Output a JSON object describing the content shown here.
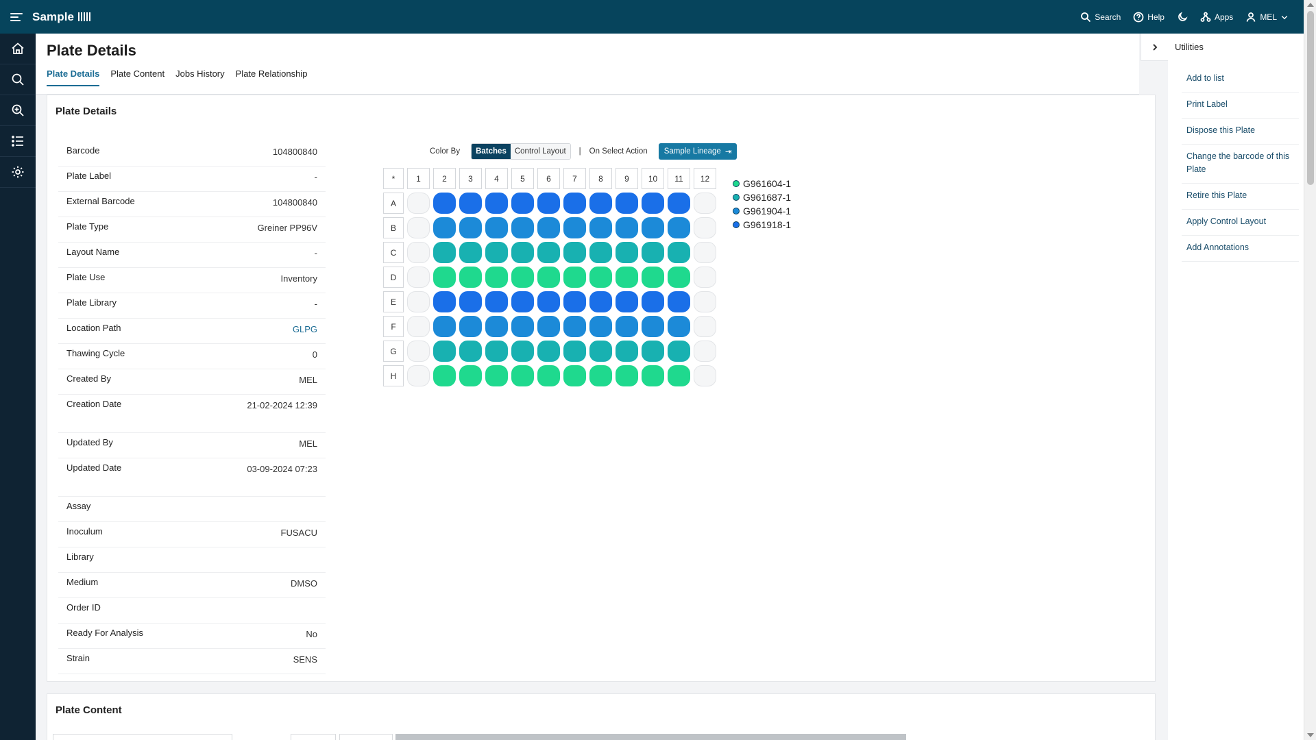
{
  "app": {
    "brand": "Sample"
  },
  "topnav": {
    "search": "Search",
    "help": "Help",
    "apps": "Apps",
    "user": "MEL"
  },
  "page": {
    "title": "Plate Details",
    "tabs": [
      "Plate Details",
      "Plate Content",
      "Jobs History",
      "Plate Relationship"
    ]
  },
  "details": {
    "title": "Plate Details",
    "fields": [
      {
        "label": "Barcode",
        "value": "104800840"
      },
      {
        "label": "Plate Label",
        "value": "-"
      },
      {
        "label": "External Barcode",
        "value": "104800840"
      },
      {
        "label": "Plate Type",
        "value": "Greiner PP96V"
      },
      {
        "label": "Layout Name",
        "value": "-"
      },
      {
        "label": "Plate Use",
        "value": "Inventory"
      },
      {
        "label": "Plate Library",
        "value": "-"
      },
      {
        "label": "Location Path",
        "value": "GLPG"
      },
      {
        "label": "Thawing Cycle",
        "value": "0"
      },
      {
        "label": "Created By",
        "value": "MEL"
      },
      {
        "label": "Creation Date",
        "value": "21-02-2024 12:39"
      },
      {
        "label": "Updated By",
        "value": "MEL"
      },
      {
        "label": "Updated Date",
        "value": "03-09-2024 07:23"
      },
      {
        "label": "Assay",
        "value": ""
      },
      {
        "label": "Inoculum",
        "value": "FUSACU"
      },
      {
        "label": "Library",
        "value": ""
      },
      {
        "label": "Medium",
        "value": "DMSO"
      },
      {
        "label": "Order ID",
        "value": ""
      },
      {
        "label": "Ready For Analysis",
        "value": "No"
      },
      {
        "label": "Strain",
        "value": "SENS"
      }
    ]
  },
  "controls": {
    "color_by_label": "Color By",
    "batches": "Batches",
    "control_layout": "Control Layout",
    "separator": "|",
    "on_select_action": "On Select Action",
    "sample_lineage": "Sample Lineage"
  },
  "plate": {
    "corner": "*",
    "columns": [
      "1",
      "2",
      "3",
      "4",
      "5",
      "6",
      "7",
      "8",
      "9",
      "10",
      "11",
      "12"
    ],
    "rows": [
      "A",
      "B",
      "C",
      "D",
      "E",
      "F",
      "G",
      "H"
    ],
    "row_colors": [
      "blue",
      "mid",
      "teal",
      "green",
      "blue",
      "mid",
      "teal",
      "green"
    ],
    "filled_columns": [
      "2",
      "3",
      "4",
      "5",
      "6",
      "7",
      "8",
      "9",
      "10",
      "11"
    ]
  },
  "legend": [
    {
      "label": "G961604-1",
      "color": "#1fd98e"
    },
    {
      "label": "G961687-1",
      "color": "#18b1b1"
    },
    {
      "label": "G961904-1",
      "color": "#1c8ad8"
    },
    {
      "label": "G961918-1",
      "color": "#1a6fe8"
    }
  ],
  "content_card": {
    "title": "Plate Content"
  },
  "utilities": {
    "title": "Utilities",
    "items": [
      "Add to list",
      "Print Label",
      "Dispose this Plate",
      "Change the barcode of this Plate",
      "Retire this Plate",
      "Apply Control Layout",
      "Add Annotations"
    ]
  },
  "colors": {
    "topbar": "#06445c",
    "rail": "#0f2333",
    "accent": "#1b6c94",
    "well_blue": "#1a6fe8",
    "well_mid": "#1c8ad8",
    "well_teal": "#18b1b1",
    "well_green": "#1fd98e"
  },
  "icons": {
    "rail": [
      "home-icon",
      "search-icon",
      "zoom-in-icon",
      "list-icon",
      "gear-icon"
    ]
  }
}
